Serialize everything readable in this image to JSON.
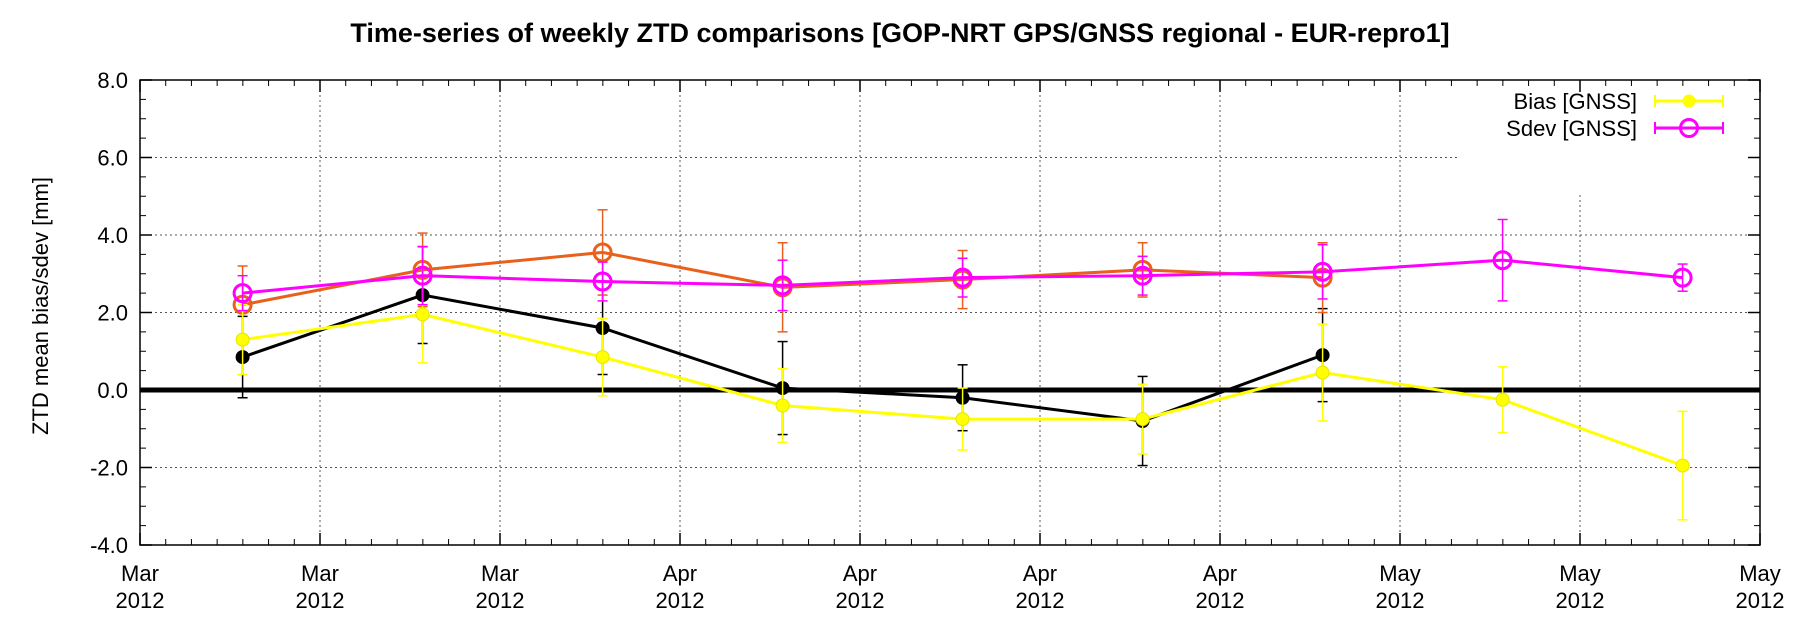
{
  "chart_data": {
    "type": "line",
    "title": "Time-series of weekly ZTD comparisons [GOP-NRT GPS/GNSS regional - EUR-repro1]",
    "ylabel": "ZTD mean bias/sdev [mm]",
    "xlabel": "",
    "ylim": [
      -4.0,
      8.0
    ],
    "yticks": [
      "8.0",
      "6.0",
      "4.0",
      "2.0",
      "0.0",
      "-2.0",
      "-4.0"
    ],
    "xticks": [
      [
        "Mar",
        "2012"
      ],
      [
        "Mar",
        "2012"
      ],
      [
        "Mar",
        "2012"
      ],
      [
        "Apr",
        "2012"
      ],
      [
        "Apr",
        "2012"
      ],
      [
        "Apr",
        "2012"
      ],
      [
        "Apr",
        "2012"
      ],
      [
        "May",
        "2012"
      ],
      [
        "May",
        "2012"
      ],
      [
        "May",
        "2012"
      ]
    ],
    "grid": true,
    "zero_line": true,
    "legend_position": "top-right",
    "series": [
      {
        "name": "",
        "color": "#000000",
        "marker": "filled-circle",
        "x": [
          0.57,
          1.57,
          2.57,
          3.57,
          4.57,
          5.57,
          6.57
        ],
        "values": [
          0.85,
          2.45,
          1.6,
          0.05,
          -0.2,
          -0.8,
          0.9
        ],
        "errors": [
          1.05,
          1.25,
          1.2,
          1.2,
          0.85,
          1.15,
          1.2
        ]
      },
      {
        "name": "",
        "color": "#e8601c",
        "marker": "open-circle",
        "x": [
          0.57,
          1.57,
          2.57,
          3.57,
          4.57,
          5.57,
          6.57
        ],
        "values": [
          2.2,
          3.1,
          3.55,
          2.65,
          2.85,
          3.1,
          2.9
        ],
        "errors": [
          1.0,
          0.95,
          1.1,
          1.15,
          0.75,
          0.7,
          0.9
        ]
      },
      {
        "name": "Bias [GNSS]",
        "color": "#ffff00",
        "marker": "filled-circle",
        "x": [
          0.57,
          1.57,
          2.57,
          3.57,
          4.57,
          5.57,
          6.57,
          7.57,
          8.57
        ],
        "values": [
          1.3,
          1.95,
          0.85,
          -0.4,
          -0.75,
          -0.75,
          0.45,
          -0.25,
          -1.95
        ],
        "errors": [
          0.9,
          1.25,
          1.0,
          0.95,
          0.8,
          0.9,
          1.25,
          0.85,
          1.4
        ]
      },
      {
        "name": "Sdev [GNSS]",
        "color": "#ff00ff",
        "marker": "open-circle",
        "x": [
          0.57,
          1.57,
          2.57,
          3.57,
          4.57,
          5.57,
          6.57,
          7.57,
          8.57
        ],
        "values": [
          2.5,
          2.95,
          2.8,
          2.7,
          2.9,
          2.95,
          3.05,
          3.35,
          2.9
        ],
        "errors": [
          0.45,
          0.75,
          0.5,
          0.65,
          0.5,
          0.5,
          0.7,
          1.05,
          0.35
        ]
      }
    ]
  }
}
